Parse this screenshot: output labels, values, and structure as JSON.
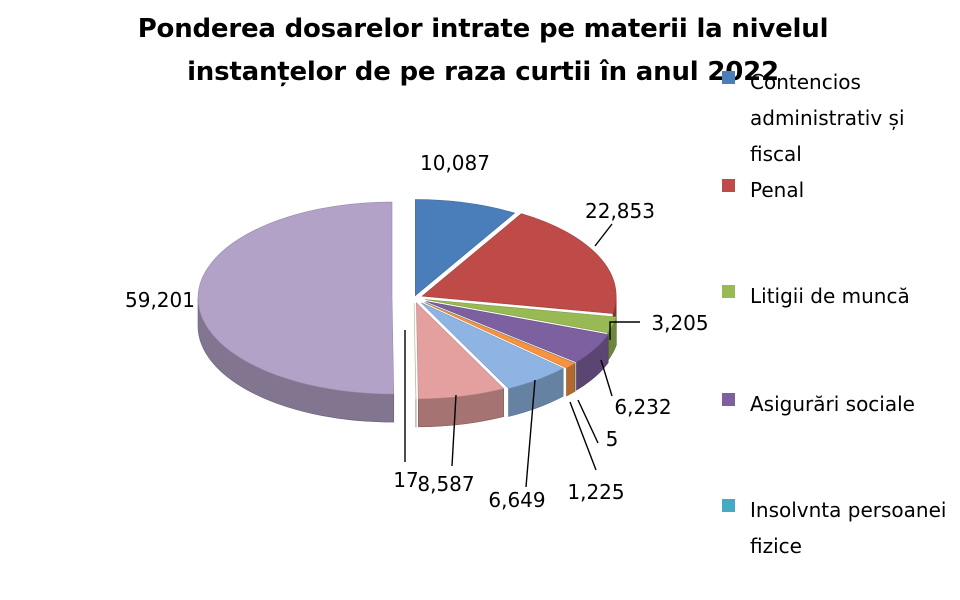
{
  "chart_data": {
    "type": "pie",
    "title": [
      "Ponderea dosarelor intrate  pe materii la nivelul",
      "instanțelor de pe raza curtii în anul 2022"
    ],
    "slices": [
      {
        "name": "Contencios administrativ și fiscal",
        "value": 10087,
        "label": "10,087",
        "color": "#4a7ebb"
      },
      {
        "name": "Penal",
        "value": 22853,
        "label": "22,853",
        "color": "#be4b48"
      },
      {
        "name": "Litigii de muncă",
        "value": 3205,
        "label": "3,205",
        "color": "#98b954"
      },
      {
        "name": "Asigurări sociale",
        "value": 6232,
        "label": "6,232",
        "color": "#7d60a0"
      },
      {
        "name": "Insolvnta persoanei fizice",
        "value": 5,
        "label": "5",
        "color": "#46aac5"
      },
      {
        "name": "",
        "value": 1225,
        "label": "1,225",
        "color": "#f69240"
      },
      {
        "name": "",
        "value": 6649,
        "label": "6,649",
        "color": "#8eb4e3"
      },
      {
        "name": "",
        "value": 8587,
        "label": "8,587",
        "color": "#e4a09f"
      },
      {
        "name": "",
        "value": 17,
        "label": "17",
        "color": "#c7dba3"
      },
      {
        "name": "",
        "value": 59201,
        "label": "59,201",
        "color": "#b3a2c7"
      }
    ],
    "legend_position": "right"
  }
}
